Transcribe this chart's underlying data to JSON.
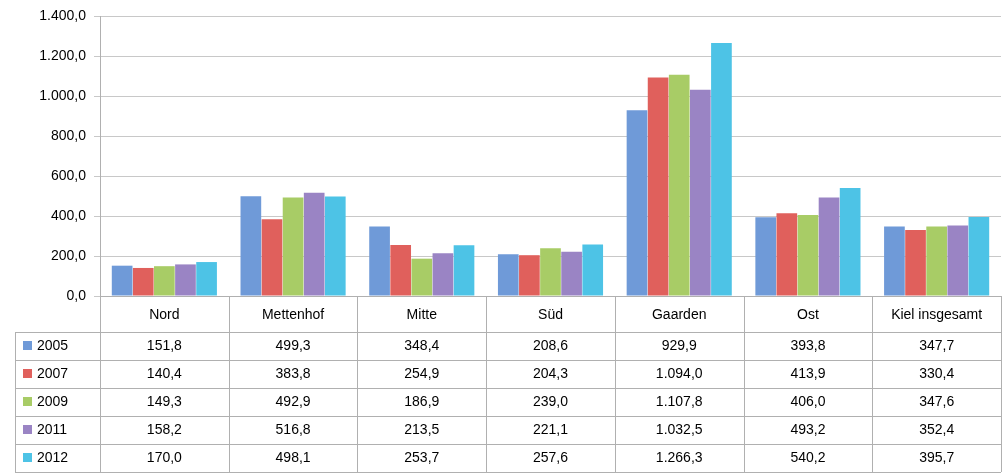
{
  "chart_data": {
    "type": "bar",
    "categories": [
      "Nord",
      "Mettenhof",
      "Mitte",
      "Süd",
      "Gaarden",
      "Ost",
      "Kiel insgesamt"
    ],
    "series": [
      {
        "name": "2005",
        "color": "#6f9ad8",
        "values": [
          151.8,
          499.3,
          348.4,
          208.6,
          929.9,
          393.8,
          347.7
        ],
        "value_labels": [
          "151,8",
          "499,3",
          "348,4",
          "208,6",
          "929,9",
          "393,8",
          "347,7"
        ]
      },
      {
        "name": "2007",
        "color": "#e0605c",
        "values": [
          140.4,
          383.8,
          254.9,
          204.3,
          1094.0,
          413.9,
          330.4
        ],
        "value_labels": [
          "140,4",
          "383,8",
          "254,9",
          "204,3",
          "1.094,0",
          "413,9",
          "330,4"
        ]
      },
      {
        "name": "2009",
        "color": "#a8cc66",
        "values": [
          149.3,
          492.9,
          186.9,
          239.0,
          1107.8,
          406.0,
          347.6
        ],
        "value_labels": [
          "149,3",
          "492,9",
          "186,9",
          "239,0",
          "1.107,8",
          "406,0",
          "347,6"
        ]
      },
      {
        "name": "2011",
        "color": "#9a84c4",
        "values": [
          158.2,
          516.8,
          213.5,
          221.1,
          1032.5,
          493.2,
          352.4
        ],
        "value_labels": [
          "158,2",
          "516,8",
          "213,5",
          "221,1",
          "1.032,5",
          "493,2",
          "352,4"
        ]
      },
      {
        "name": "2012",
        "color": "#4dc3e6",
        "values": [
          170.0,
          498.1,
          253.7,
          257.6,
          1266.3,
          540.2,
          395.7
        ],
        "value_labels": [
          "170,0",
          "498,1",
          "253,7",
          "257,6",
          "1.266,3",
          "540,2",
          "395,7"
        ]
      }
    ],
    "ylim": [
      0,
      1400
    ],
    "yticks": [
      {
        "value": 0,
        "label": "0,0"
      },
      {
        "value": 200,
        "label": "200,0"
      },
      {
        "value": 400,
        "label": "400,0"
      },
      {
        "value": 600,
        "label": "600,0"
      },
      {
        "value": 800,
        "label": "800,0"
      },
      {
        "value": 1000,
        "label": "1.000,0"
      },
      {
        "value": 1200,
        "label": "1.200,0"
      },
      {
        "value": 1400,
        "label": "1.400,0"
      }
    ],
    "grid": "y",
    "legend": "bottom left"
  }
}
